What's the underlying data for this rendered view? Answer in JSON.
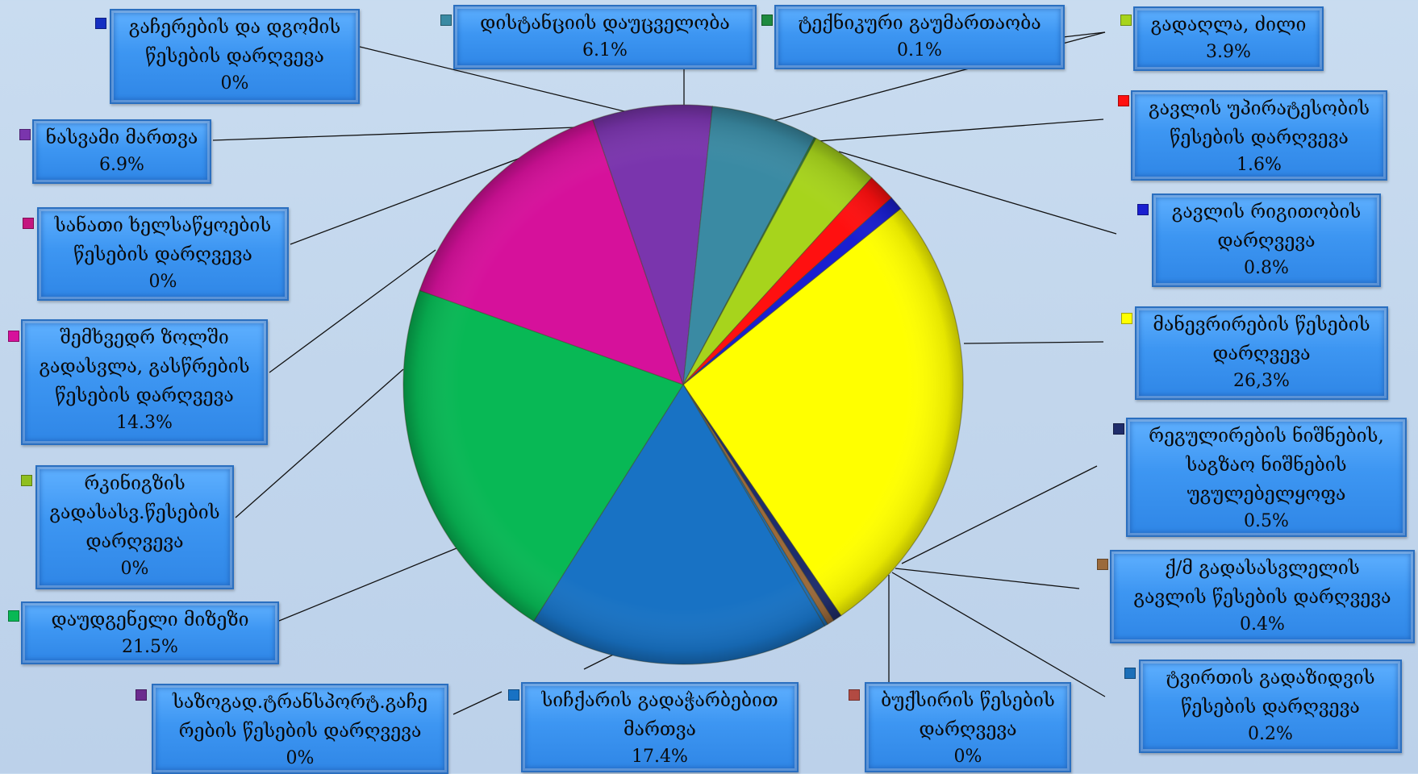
{
  "chart_data": {
    "type": "pie",
    "title": "",
    "slices": [
      {
        "id": "maneuver",
        "label": [
          "მანევრირების წესების",
          "დარღვევა"
        ],
        "display": "26,3%",
        "value": 26.3,
        "color": "#ffff00"
      },
      {
        "id": "regsigns",
        "label": [
          "რეგულირების ნიშნების,",
          "საგზაო ნიშნების",
          "უგულებელყოფა"
        ],
        "display": "0.5%",
        "value": 0.5,
        "color": "#1f2d6b"
      },
      {
        "id": "railx",
        "label": [
          "ქ/მ გადასასვლელის",
          "გავლის წესების  დარღვევა"
        ],
        "display": "0.4%",
        "value": 0.4,
        "color": "#9b6a3b"
      },
      {
        "id": "cargo",
        "label": [
          "ტვირთის გადაზიდვის",
          "წესების დარღვევა"
        ],
        "display": "0.2%",
        "value": 0.2,
        "color": "#1c6fb8"
      },
      {
        "id": "tow",
        "label": [
          "ბუქსირის წესების",
          "დარღვევა"
        ],
        "display": "0%",
        "value": 0,
        "color": "#b24a42"
      },
      {
        "id": "speed",
        "label": [
          "სიჩქარის გადაჭარბებით",
          "მართვა"
        ],
        "display": "17.4%",
        "value": 17.4,
        "color": "#1872c4"
      },
      {
        "id": "pubtrans",
        "label": [
          "საზოგად.ტრანსპორტ.გაჩე",
          "რების წესების დარღვევა"
        ],
        "display": "0%",
        "value": 0,
        "color": "#6b2b8f"
      },
      {
        "id": "unknown",
        "label": [
          "დაუდგენელი მიზეზი"
        ],
        "display": "21.5%",
        "value": 21.5,
        "color": "#08b855"
      },
      {
        "id": "railroad",
        "label": [
          "რკინიგზის",
          "გადასასვ.წესების",
          "დარღვევა"
        ],
        "display": "0%",
        "value": 0,
        "color": "#8fbf1f"
      },
      {
        "id": "oncoming",
        "label": [
          "შემხვედრ ზოლში",
          "გადასვლა, გასწრების",
          "წესების დარღვევა"
        ],
        "display": "14.3%",
        "value": 14.3,
        "color": "#d6119b"
      },
      {
        "id": "lights",
        "label": [
          "სანათი ხელსაწყოების",
          "წესების დარღვევა"
        ],
        "display": "0%",
        "value": 0,
        "color": "#c4177f"
      },
      {
        "id": "drunk",
        "label": [
          "ნასვამი მართვა"
        ],
        "display": "6.9%",
        "value": 6.9,
        "color": "#7a35ad"
      },
      {
        "id": "stopping",
        "label": [
          "გაჩერების და დგომის",
          "წესების დარღვევა"
        ],
        "display": "0%",
        "value": 0,
        "color": "#1630c2"
      },
      {
        "id": "distance",
        "label": [
          "დისტანციის დაუცველობა"
        ],
        "display": "6.1%",
        "value": 6.1,
        "color": "#3a8aa3"
      },
      {
        "id": "technical",
        "label": [
          "ტექნიკური გაუმართაობა"
        ],
        "display": "0.1%",
        "value": 0.1,
        "color": "#1e8a3f"
      },
      {
        "id": "overtake",
        "label": [
          "გადაღლა, ძილი"
        ],
        "display": "3.9%",
        "value": 3.9,
        "color": "#a7d41c"
      },
      {
        "id": "priority",
        "label": [
          "გავლის უპირატესობის",
          "წესების დარღვევა"
        ],
        "display": "1.6%",
        "value": 1.6,
        "color": "#ff1010"
      },
      {
        "id": "order",
        "label": [
          "გავლის რიგითობის",
          "დარღვევა"
        ],
        "display": "0.8%",
        "value": 0.8,
        "color": "#1a1fd0"
      }
    ]
  }
}
